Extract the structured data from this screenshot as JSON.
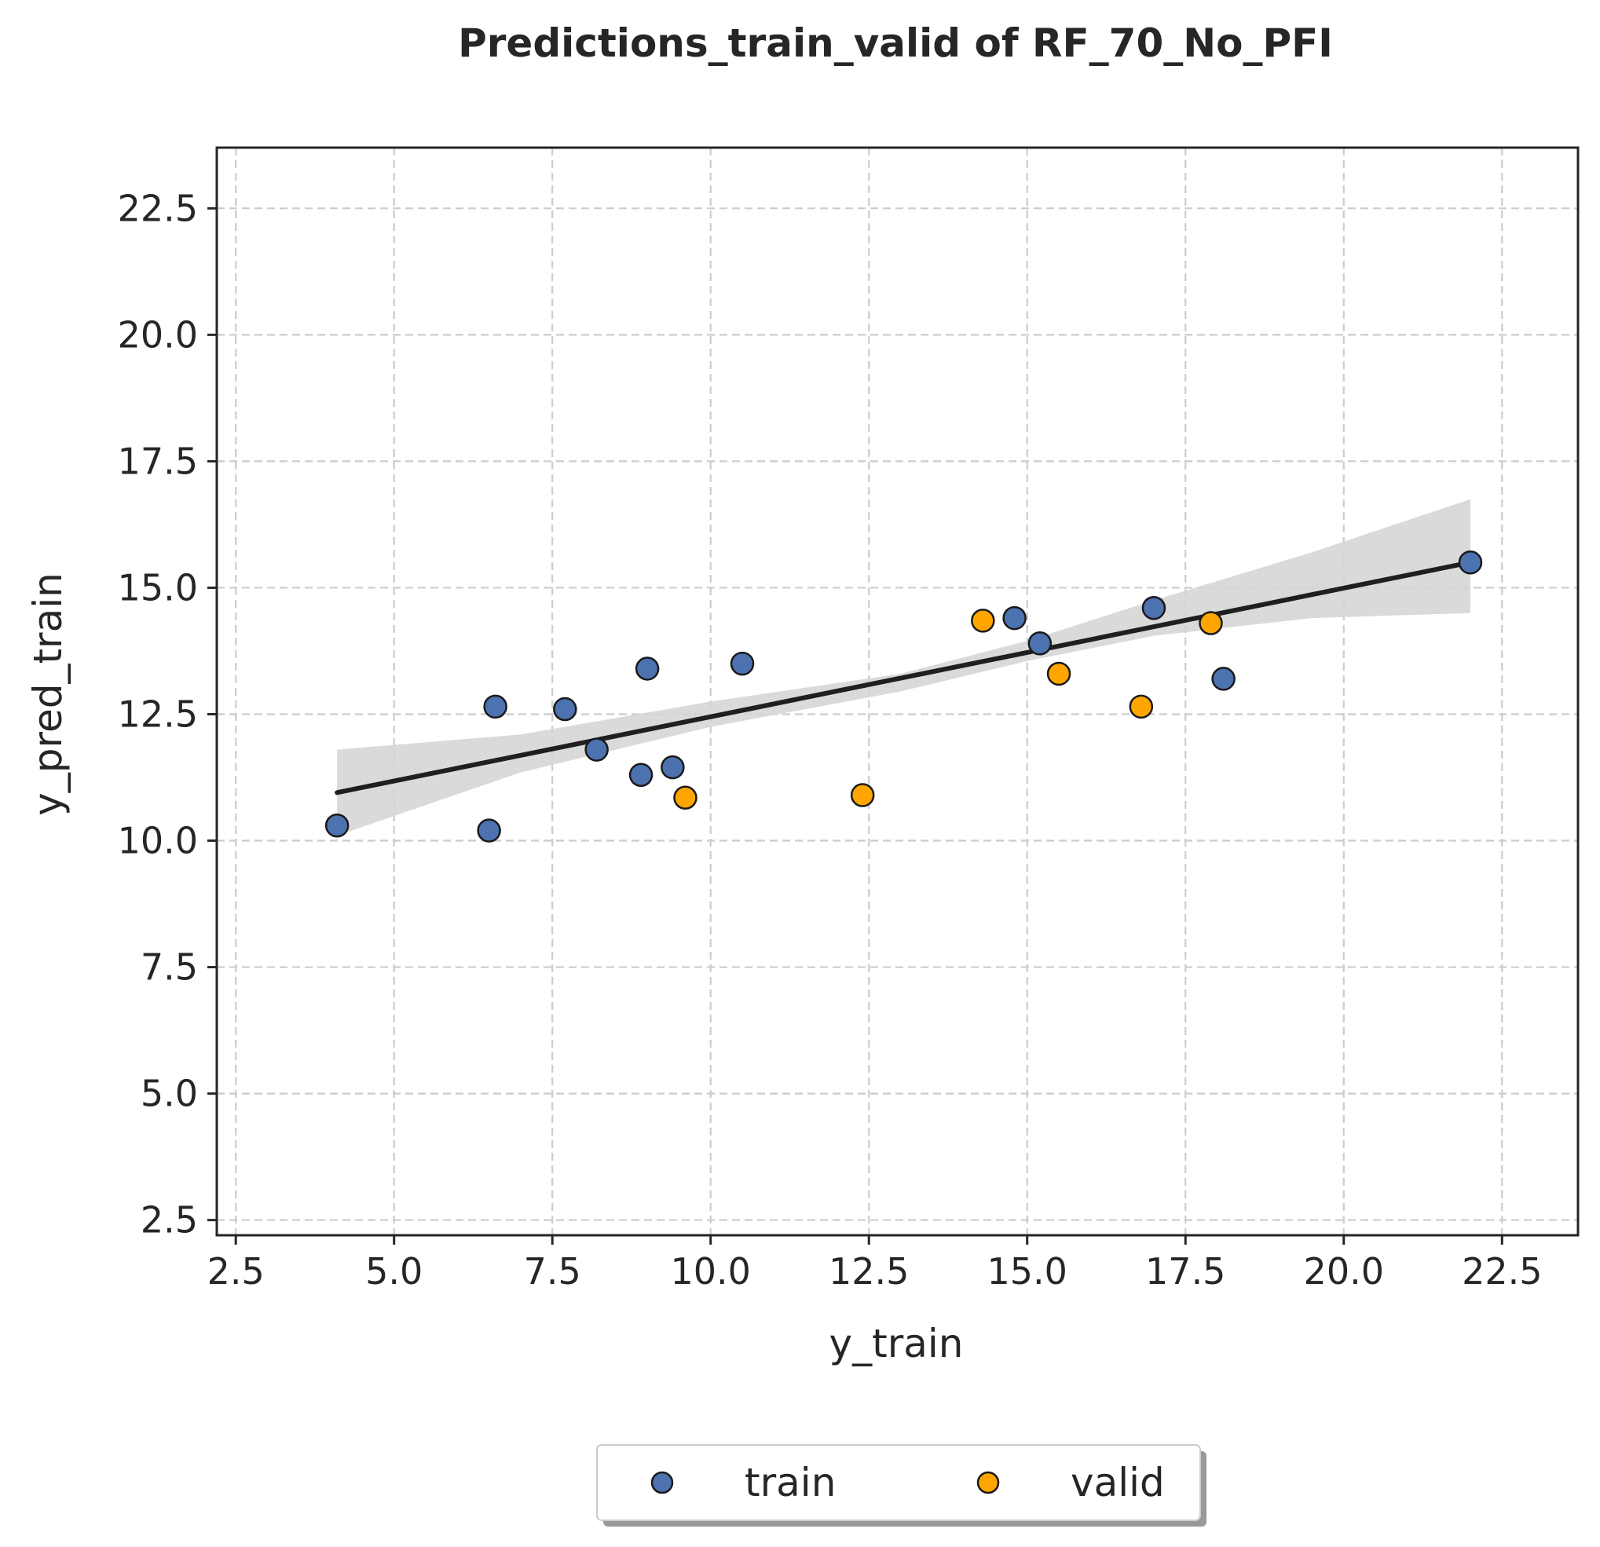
{
  "colors": {
    "train": "#4c72b0",
    "valid": "#ffa500",
    "line": "#1f1f1f",
    "band": "#d3d3d3",
    "grid": "#cccccc",
    "axes": "#262626"
  },
  "chart_data": {
    "type": "scatter",
    "title": "Predictions_train_valid of RF_70_No_PFI",
    "xlabel": "y_train",
    "ylabel": "y_pred_train",
    "xlim": [
      2.2,
      23.7
    ],
    "ylim": [
      2.2,
      23.7
    ],
    "xticks": [
      "2.5",
      "5.0",
      "7.5",
      "10.0",
      "12.5",
      "15.0",
      "17.5",
      "20.0",
      "22.5"
    ],
    "yticks": [
      "2.5",
      "5.0",
      "7.5",
      "10.0",
      "12.5",
      "15.0",
      "17.5",
      "20.0",
      "22.5"
    ],
    "grid": true,
    "legend_position": "bottom-center",
    "series": [
      {
        "name": "train",
        "points": [
          [
            4.1,
            10.3
          ],
          [
            6.5,
            10.2
          ],
          [
            6.6,
            12.65
          ],
          [
            7.7,
            12.6
          ],
          [
            8.2,
            11.8
          ],
          [
            8.9,
            11.3
          ],
          [
            9.0,
            13.4
          ],
          [
            9.4,
            11.45
          ],
          [
            10.5,
            13.5
          ],
          [
            14.8,
            14.4
          ],
          [
            15.2,
            13.9
          ],
          [
            17.0,
            14.6
          ],
          [
            18.1,
            13.2
          ],
          [
            22.0,
            15.5
          ]
        ]
      },
      {
        "name": "valid",
        "points": [
          [
            9.6,
            10.85
          ],
          [
            12.4,
            10.9
          ],
          [
            14.3,
            14.35
          ],
          [
            15.5,
            13.3
          ],
          [
            16.8,
            12.65
          ],
          [
            17.9,
            14.3
          ]
        ]
      }
    ],
    "regression": {
      "line": [
        [
          4.1,
          10.95
        ],
        [
          22.0,
          15.5
        ]
      ],
      "band_upper": [
        [
          4.1,
          11.8
        ],
        [
          7.0,
          12.1
        ],
        [
          10.0,
          12.75
        ],
        [
          13.0,
          13.3
        ],
        [
          15.0,
          13.95
        ],
        [
          17.0,
          14.75
        ],
        [
          19.5,
          15.7
        ],
        [
          22.0,
          16.75
        ]
      ],
      "band_lower": [
        [
          4.1,
          10.1
        ],
        [
          7.0,
          11.35
        ],
        [
          10.0,
          12.25
        ],
        [
          13.0,
          12.95
        ],
        [
          15.0,
          13.55
        ],
        [
          17.0,
          14.05
        ],
        [
          19.5,
          14.4
        ],
        [
          22.0,
          14.5
        ]
      ]
    }
  }
}
